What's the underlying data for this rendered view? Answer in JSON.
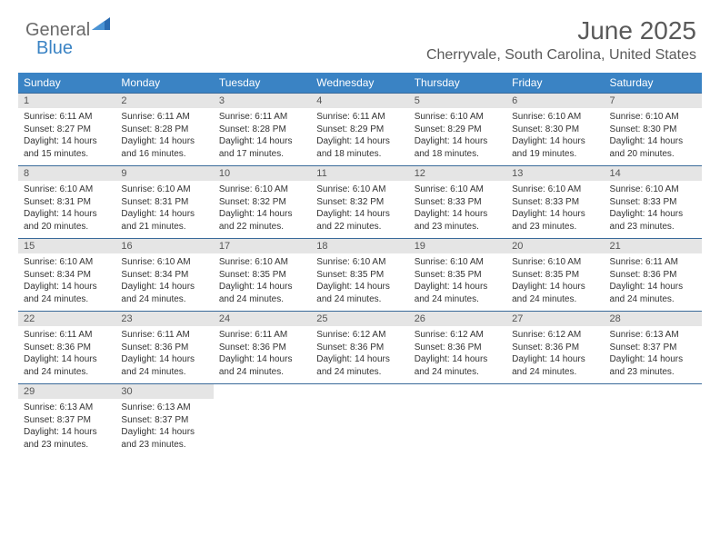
{
  "logo": {
    "word1": "General",
    "word2": "Blue"
  },
  "header": {
    "title": "June 2025",
    "location": "Cherryvale, South Carolina, United States"
  },
  "colors": {
    "header_bg": "#3a83c4",
    "header_text": "#ffffff",
    "daynum_bg": "#e5e5e5",
    "row_border": "#3a6a9a",
    "text": "#333333",
    "title_text": "#5a5a5a"
  },
  "weekdays": [
    "Sunday",
    "Monday",
    "Tuesday",
    "Wednesday",
    "Thursday",
    "Friday",
    "Saturday"
  ],
  "weeks": [
    [
      {
        "n": "1",
        "sr": "Sunrise: 6:11 AM",
        "ss": "Sunset: 8:27 PM",
        "d1": "Daylight: 14 hours",
        "d2": "and 15 minutes."
      },
      {
        "n": "2",
        "sr": "Sunrise: 6:11 AM",
        "ss": "Sunset: 8:28 PM",
        "d1": "Daylight: 14 hours",
        "d2": "and 16 minutes."
      },
      {
        "n": "3",
        "sr": "Sunrise: 6:11 AM",
        "ss": "Sunset: 8:28 PM",
        "d1": "Daylight: 14 hours",
        "d2": "and 17 minutes."
      },
      {
        "n": "4",
        "sr": "Sunrise: 6:11 AM",
        "ss": "Sunset: 8:29 PM",
        "d1": "Daylight: 14 hours",
        "d2": "and 18 minutes."
      },
      {
        "n": "5",
        "sr": "Sunrise: 6:10 AM",
        "ss": "Sunset: 8:29 PM",
        "d1": "Daylight: 14 hours",
        "d2": "and 18 minutes."
      },
      {
        "n": "6",
        "sr": "Sunrise: 6:10 AM",
        "ss": "Sunset: 8:30 PM",
        "d1": "Daylight: 14 hours",
        "d2": "and 19 minutes."
      },
      {
        "n": "7",
        "sr": "Sunrise: 6:10 AM",
        "ss": "Sunset: 8:30 PM",
        "d1": "Daylight: 14 hours",
        "d2": "and 20 minutes."
      }
    ],
    [
      {
        "n": "8",
        "sr": "Sunrise: 6:10 AM",
        "ss": "Sunset: 8:31 PM",
        "d1": "Daylight: 14 hours",
        "d2": "and 20 minutes."
      },
      {
        "n": "9",
        "sr": "Sunrise: 6:10 AM",
        "ss": "Sunset: 8:31 PM",
        "d1": "Daylight: 14 hours",
        "d2": "and 21 minutes."
      },
      {
        "n": "10",
        "sr": "Sunrise: 6:10 AM",
        "ss": "Sunset: 8:32 PM",
        "d1": "Daylight: 14 hours",
        "d2": "and 22 minutes."
      },
      {
        "n": "11",
        "sr": "Sunrise: 6:10 AM",
        "ss": "Sunset: 8:32 PM",
        "d1": "Daylight: 14 hours",
        "d2": "and 22 minutes."
      },
      {
        "n": "12",
        "sr": "Sunrise: 6:10 AM",
        "ss": "Sunset: 8:33 PM",
        "d1": "Daylight: 14 hours",
        "d2": "and 23 minutes."
      },
      {
        "n": "13",
        "sr": "Sunrise: 6:10 AM",
        "ss": "Sunset: 8:33 PM",
        "d1": "Daylight: 14 hours",
        "d2": "and 23 minutes."
      },
      {
        "n": "14",
        "sr": "Sunrise: 6:10 AM",
        "ss": "Sunset: 8:33 PM",
        "d1": "Daylight: 14 hours",
        "d2": "and 23 minutes."
      }
    ],
    [
      {
        "n": "15",
        "sr": "Sunrise: 6:10 AM",
        "ss": "Sunset: 8:34 PM",
        "d1": "Daylight: 14 hours",
        "d2": "and 24 minutes."
      },
      {
        "n": "16",
        "sr": "Sunrise: 6:10 AM",
        "ss": "Sunset: 8:34 PM",
        "d1": "Daylight: 14 hours",
        "d2": "and 24 minutes."
      },
      {
        "n": "17",
        "sr": "Sunrise: 6:10 AM",
        "ss": "Sunset: 8:35 PM",
        "d1": "Daylight: 14 hours",
        "d2": "and 24 minutes."
      },
      {
        "n": "18",
        "sr": "Sunrise: 6:10 AM",
        "ss": "Sunset: 8:35 PM",
        "d1": "Daylight: 14 hours",
        "d2": "and 24 minutes."
      },
      {
        "n": "19",
        "sr": "Sunrise: 6:10 AM",
        "ss": "Sunset: 8:35 PM",
        "d1": "Daylight: 14 hours",
        "d2": "and 24 minutes."
      },
      {
        "n": "20",
        "sr": "Sunrise: 6:10 AM",
        "ss": "Sunset: 8:35 PM",
        "d1": "Daylight: 14 hours",
        "d2": "and 24 minutes."
      },
      {
        "n": "21",
        "sr": "Sunrise: 6:11 AM",
        "ss": "Sunset: 8:36 PM",
        "d1": "Daylight: 14 hours",
        "d2": "and 24 minutes."
      }
    ],
    [
      {
        "n": "22",
        "sr": "Sunrise: 6:11 AM",
        "ss": "Sunset: 8:36 PM",
        "d1": "Daylight: 14 hours",
        "d2": "and 24 minutes."
      },
      {
        "n": "23",
        "sr": "Sunrise: 6:11 AM",
        "ss": "Sunset: 8:36 PM",
        "d1": "Daylight: 14 hours",
        "d2": "and 24 minutes."
      },
      {
        "n": "24",
        "sr": "Sunrise: 6:11 AM",
        "ss": "Sunset: 8:36 PM",
        "d1": "Daylight: 14 hours",
        "d2": "and 24 minutes."
      },
      {
        "n": "25",
        "sr": "Sunrise: 6:12 AM",
        "ss": "Sunset: 8:36 PM",
        "d1": "Daylight: 14 hours",
        "d2": "and 24 minutes."
      },
      {
        "n": "26",
        "sr": "Sunrise: 6:12 AM",
        "ss": "Sunset: 8:36 PM",
        "d1": "Daylight: 14 hours",
        "d2": "and 24 minutes."
      },
      {
        "n": "27",
        "sr": "Sunrise: 6:12 AM",
        "ss": "Sunset: 8:36 PM",
        "d1": "Daylight: 14 hours",
        "d2": "and 24 minutes."
      },
      {
        "n": "28",
        "sr": "Sunrise: 6:13 AM",
        "ss": "Sunset: 8:37 PM",
        "d1": "Daylight: 14 hours",
        "d2": "and 23 minutes."
      }
    ],
    [
      {
        "n": "29",
        "sr": "Sunrise: 6:13 AM",
        "ss": "Sunset: 8:37 PM",
        "d1": "Daylight: 14 hours",
        "d2": "and 23 minutes."
      },
      {
        "n": "30",
        "sr": "Sunrise: 6:13 AM",
        "ss": "Sunset: 8:37 PM",
        "d1": "Daylight: 14 hours",
        "d2": "and 23 minutes."
      },
      null,
      null,
      null,
      null,
      null
    ]
  ]
}
